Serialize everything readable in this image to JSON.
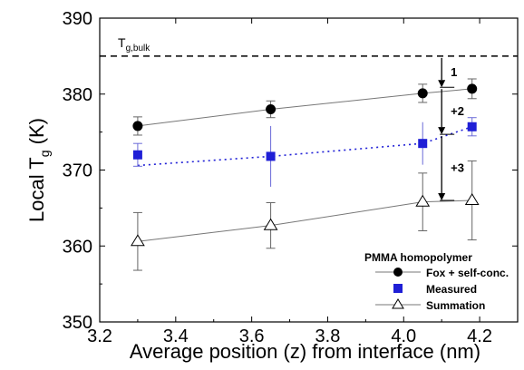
{
  "chart_data": {
    "type": "scatter",
    "xlabel": "Average position (z) from interface (nm)",
    "ylabel": {
      "main": "Local T",
      "sub": "g",
      "unit": " (K)"
    },
    "xlim": [
      3.2,
      4.3
    ],
    "ylim": [
      350,
      390
    ],
    "xticks": [
      3.2,
      3.4,
      3.6,
      3.8,
      4.0,
      4.2
    ],
    "xtick_labels": [
      "3.2",
      "3.4",
      "3.6",
      "3.8",
      "4.0",
      "4.2"
    ],
    "yticks": [
      350,
      360,
      370,
      380,
      390
    ],
    "ytick_labels": [
      "350",
      "360",
      "370",
      "380",
      "390"
    ],
    "grid": false,
    "reference_line": {
      "y": 385,
      "label_main": "T",
      "label_sub": "g,bulk",
      "style": "dashed"
    },
    "legend": {
      "title": "PMMA homopolymer",
      "position": "bottom-right",
      "entries": [
        "Fox + self-conc.",
        "Measured",
        "Summation"
      ]
    },
    "series": [
      {
        "name": "Fox + self-conc.",
        "marker": "circle",
        "color": "#000000",
        "line": "solid-gray",
        "x": [
          3.3,
          3.65,
          4.05,
          4.18
        ],
        "y": [
          375.8,
          378.0,
          380.1,
          380.7
        ],
        "err": [
          1.2,
          1.1,
          1.2,
          1.3
        ]
      },
      {
        "name": "Measured",
        "marker": "square",
        "color": "#1f1fd6",
        "line": "dotted-blue",
        "x": [
          3.3,
          3.65,
          4.05,
          4.18
        ],
        "y": [
          372.0,
          371.8,
          373.5,
          375.7
        ],
        "err": [
          1.5,
          4.0,
          2.8,
          1.2
        ],
        "err_caps": [
          true,
          false,
          false,
          true
        ],
        "line_start": 370.6
      },
      {
        "name": "Summation",
        "marker": "open-triangle",
        "color": "#000000",
        "line": "solid-gray",
        "x": [
          3.3,
          3.65,
          4.05,
          4.18
        ],
        "y": [
          360.6,
          362.7,
          365.8,
          366.0
        ],
        "err": [
          3.8,
          3.0,
          3.8,
          5.2
        ]
      }
    ],
    "annotations": [
      {
        "text": "1",
        "x": 4.1,
        "y_from": 385,
        "y_to": 380.9
      },
      {
        "text": "+2",
        "x": 4.1,
        "y_from": 380.9,
        "y_to": 374.7
      },
      {
        "text": "+3",
        "x": 4.1,
        "y_from": 374.7,
        "y_to": 366.0
      }
    ]
  }
}
